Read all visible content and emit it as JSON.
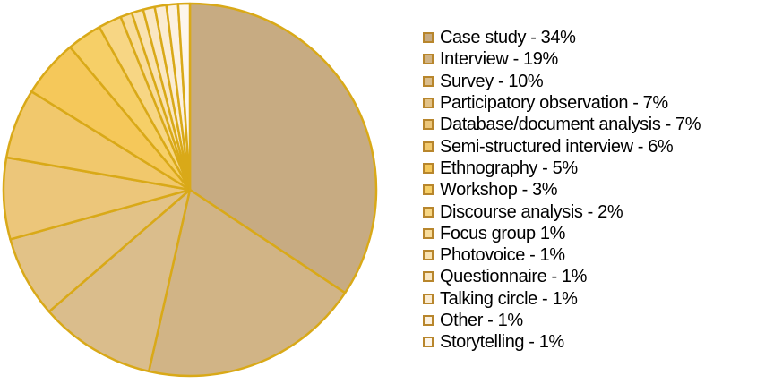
{
  "chart_data": {
    "type": "pie",
    "title": "",
    "legend_position": "right",
    "start_angle": "12 o'clock, clockwise",
    "border_color": "#d9a918",
    "slices": [
      {
        "label": "Case study - 34%",
        "value": 34,
        "color": "#c7ab82"
      },
      {
        "label": "Interview - 19%",
        "value": 19,
        "color": "#d1b486"
      },
      {
        "label": "Survey - 10%",
        "value": 10,
        "color": "#dabd8c"
      },
      {
        "label": "Participatory observation - 7%",
        "value": 7,
        "color": "#e2c287"
      },
      {
        "label": "Database/document analysis - 7%",
        "value": 7,
        "color": "#ecc67a"
      },
      {
        "label": "Semi-structured interview - 6%",
        "value": 6,
        "color": "#f1c86c"
      },
      {
        "label": "Ethnography - 5%",
        "value": 5,
        "color": "#f5c85a"
      },
      {
        "label": "Workshop - 3%",
        "value": 3,
        "color": "#f6cf67"
      },
      {
        "label": "Discourse analysis - 2%",
        "value": 2,
        "color": "#f7d684"
      },
      {
        "label": "Focus group 1%",
        "value": 1,
        "color": "#f8dc9b"
      },
      {
        "label": "Photovoice - 1%",
        "value": 1,
        "color": "#f9e2b0"
      },
      {
        "label": "Questionnaire - 1%",
        "value": 1,
        "color": "#fae7c2"
      },
      {
        "label": "Talking circle - 1%",
        "value": 1,
        "color": "#fbecd2"
      },
      {
        "label": "Other - 1%",
        "value": 1,
        "color": "#fcf1e0"
      },
      {
        "label": "Storytelling - 1%",
        "value": 1,
        "color": "#fdf6ec"
      }
    ]
  }
}
